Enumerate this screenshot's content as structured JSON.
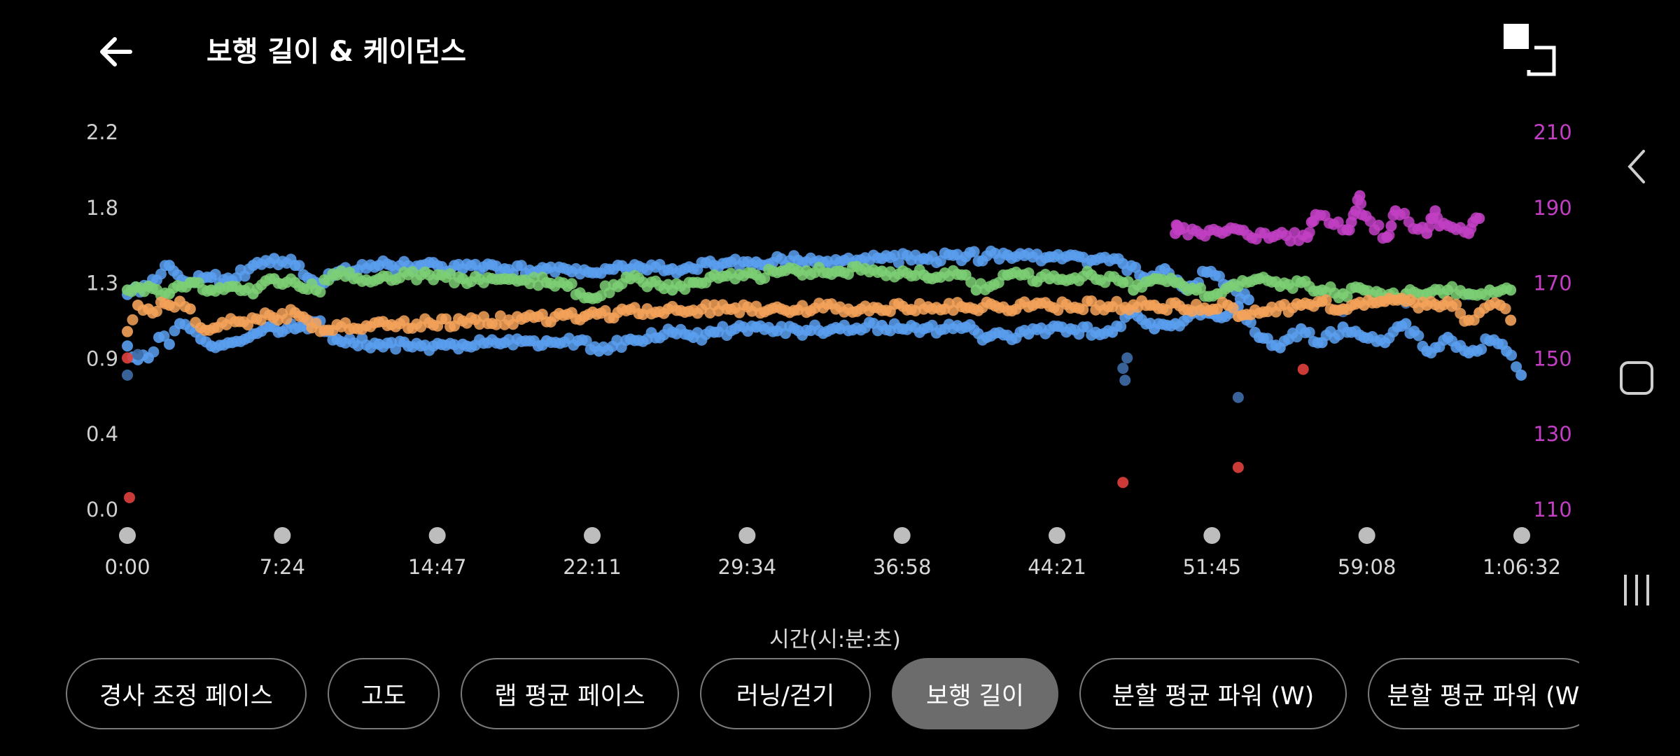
{
  "header": {
    "title": "보행 길이 & 케이던스",
    "back_icon": "arrow-left-icon",
    "fullscreen_icon": "fullscreen-icon"
  },
  "colors": {
    "left_axis_labels": "#cfcfcf",
    "right_axis_labels": "#c23fc4",
    "stride_series": "#5a9ff0",
    "stride_dark": "#3f6ea8",
    "cadence_green": "#7ccf74",
    "cadence_orange": "#f4a259",
    "cadence_red": "#e0403c",
    "cadence_magenta": "#c23fc4",
    "active_tab": "#6c6c6c",
    "tab_border": "#7a7a7a"
  },
  "chart_data": {
    "type": "scatter",
    "left_ticks": [
      "2.2",
      "1.8",
      "1.3",
      "0.9",
      "0.4",
      "0.0"
    ],
    "right_ticks": [
      "210",
      "190",
      "170",
      "150",
      "130",
      "110"
    ],
    "left_ylim": [
      0.0,
      2.2
    ],
    "right_ylim": [
      110,
      210
    ],
    "x_ticks": [
      "0:00",
      "7:24",
      "14:47",
      "22:11",
      "29:34",
      "36:58",
      "44:21",
      "51:45",
      "59:08",
      "1:06:32"
    ],
    "xlabel": "시간(시:분:초)",
    "x_range_min": [
      0,
      66.53
    ],
    "grid": false,
    "series": [
      {
        "axis": "left",
        "color_key": "stride_series",
        "points": [
          [
            0,
            0.95
          ],
          [
            0.5,
            0.87
          ],
          [
            1,
            0.88
          ],
          [
            1.5,
            1.0
          ],
          [
            2,
            0.96
          ],
          [
            2.5,
            1.08
          ],
          [
            3,
            1.05
          ],
          [
            3.5,
            0.99
          ],
          [
            4,
            0.95
          ],
          [
            5,
            0.97
          ],
          [
            6,
            1.02
          ],
          [
            7,
            1.06
          ],
          [
            8,
            1.05
          ],
          [
            9,
            1.09
          ],
          [
            10,
            0.99
          ],
          [
            12,
            0.96
          ],
          [
            14,
            0.95
          ],
          [
            16,
            0.96
          ],
          [
            18,
            0.97
          ],
          [
            20,
            0.98
          ],
          [
            21.5,
            0.98
          ],
          [
            22.5,
            0.92
          ],
          [
            24,
            0.99
          ],
          [
            26,
            1.03
          ],
          [
            27,
            1.0
          ],
          [
            28,
            1.03
          ],
          [
            30,
            1.06
          ],
          [
            32,
            1.04
          ],
          [
            34,
            1.05
          ],
          [
            36,
            1.07
          ],
          [
            38,
            1.05
          ],
          [
            40,
            1.06
          ],
          [
            41,
            1.0
          ],
          [
            43,
            1.02
          ],
          [
            45,
            1.05
          ],
          [
            47,
            1.03
          ],
          [
            48,
            1.15
          ],
          [
            49,
            1.05
          ],
          [
            50,
            1.08
          ],
          [
            51,
            1.15
          ],
          [
            52,
            1.12
          ],
          [
            53,
            1.18
          ],
          [
            54,
            1.0
          ],
          [
            55,
            0.94
          ],
          [
            56,
            1.05
          ],
          [
            57,
            0.97
          ],
          [
            58,
            1.06
          ],
          [
            59,
            1.0
          ],
          [
            60,
            0.97
          ],
          [
            61,
            1.08
          ],
          [
            62,
            0.92
          ],
          [
            63,
            1.0
          ],
          [
            64,
            0.91
          ],
          [
            65,
            0.98
          ],
          [
            65.8,
            0.92
          ],
          [
            66.5,
            0.78
          ]
        ]
      },
      {
        "axis": "left",
        "color_key": "stride_series",
        "points": [
          [
            0,
            1.25
          ],
          [
            1,
            1.3
          ],
          [
            2,
            1.42
          ],
          [
            3,
            1.32
          ],
          [
            4,
            1.35
          ],
          [
            5,
            1.33
          ],
          [
            6,
            1.42
          ],
          [
            7,
            1.46
          ],
          [
            8,
            1.42
          ],
          [
            9,
            1.32
          ],
          [
            10,
            1.38
          ],
          [
            12,
            1.42
          ],
          [
            14,
            1.42
          ],
          [
            16,
            1.4
          ],
          [
            18,
            1.4
          ],
          [
            20,
            1.4
          ],
          [
            22,
            1.38
          ],
          [
            24,
            1.4
          ],
          [
            26,
            1.4
          ],
          [
            28,
            1.42
          ],
          [
            30,
            1.44
          ],
          [
            32,
            1.45
          ],
          [
            34,
            1.44
          ],
          [
            36,
            1.46
          ],
          [
            38,
            1.46
          ],
          [
            40,
            1.47
          ],
          [
            42,
            1.48
          ],
          [
            44,
            1.47
          ],
          [
            46,
            1.45
          ],
          [
            47.5,
            1.43
          ],
          [
            48.5,
            1.35
          ],
          [
            49.5,
            1.4
          ],
          [
            50.5,
            1.28
          ],
          [
            51.5,
            1.38
          ],
          [
            52.5,
            1.3
          ],
          [
            53.5,
            1.22
          ]
        ]
      },
      {
        "axis": "left",
        "color_key": "stride_dark",
        "points": [
          [
            0,
            0.78
          ],
          [
            0.5,
            0.9
          ],
          [
            47.5,
            0.82
          ],
          [
            47.6,
            0.75
          ],
          [
            47.7,
            0.88
          ],
          [
            53,
            0.65
          ],
          [
            58,
            1.15
          ],
          [
            61,
            1.2
          ],
          [
            64,
            1.25
          ]
        ]
      },
      {
        "axis": "right",
        "color_key": "cadence_green",
        "points": [
          [
            0,
            168
          ],
          [
            1,
            169
          ],
          [
            2,
            167
          ],
          [
            3,
            170
          ],
          [
            4,
            168
          ],
          [
            5,
            169
          ],
          [
            6,
            167
          ],
          [
            7,
            171
          ],
          [
            8,
            170
          ],
          [
            9,
            168
          ],
          [
            10,
            172
          ],
          [
            12,
            171
          ],
          [
            14,
            172
          ],
          [
            16,
            171
          ],
          [
            18,
            171
          ],
          [
            20,
            170
          ],
          [
            21,
            169
          ],
          [
            22,
            166
          ],
          [
            24,
            171
          ],
          [
            26,
            168
          ],
          [
            27,
            170
          ],
          [
            28,
            172
          ],
          [
            30,
            172
          ],
          [
            32,
            173
          ],
          [
            34,
            173
          ],
          [
            36,
            173
          ],
          [
            38,
            172
          ],
          [
            40,
            172
          ],
          [
            40.5,
            168
          ],
          [
            42,
            172
          ],
          [
            44,
            171
          ],
          [
            46,
            172
          ],
          [
            47.5,
            170
          ],
          [
            48,
            168
          ],
          [
            49,
            171
          ],
          [
            50,
            170
          ],
          [
            51,
            168
          ],
          [
            52,
            167
          ],
          [
            53,
            169
          ],
          [
            54,
            171
          ],
          [
            55,
            169
          ],
          [
            56,
            170
          ],
          [
            57,
            168
          ],
          [
            58,
            167
          ],
          [
            59,
            168
          ],
          [
            60,
            166
          ],
          [
            61,
            167
          ],
          [
            62,
            167
          ],
          [
            63,
            168
          ],
          [
            64,
            167
          ],
          [
            65,
            168
          ],
          [
            66,
            168
          ]
        ]
      },
      {
        "axis": "right",
        "color_key": "cadence_orange",
        "points": [
          [
            0,
            157
          ],
          [
            0.5,
            164
          ],
          [
            1,
            163
          ],
          [
            2,
            164
          ],
          [
            2.5,
            165
          ],
          [
            3,
            163
          ],
          [
            3.5,
            158
          ],
          [
            8,
            162
          ],
          [
            8.8,
            158
          ],
          [
            21.8,
            161
          ],
          [
            25.8,
            163
          ],
          [
            49,
            164
          ],
          [
            52,
            163
          ],
          [
            52.5,
            164
          ],
          [
            53,
            161
          ],
          [
            56,
            164
          ],
          [
            57,
            165
          ],
          [
            58,
            163
          ],
          [
            59,
            164
          ],
          [
            60,
            165
          ],
          [
            61,
            165
          ],
          [
            62,
            164
          ],
          [
            63,
            165
          ],
          [
            64,
            160
          ],
          [
            64.5,
            162
          ],
          [
            65,
            164
          ],
          [
            65.5,
            164
          ],
          [
            66,
            160
          ]
        ]
      },
      {
        "axis": "right",
        "color_key": "cadence_red",
        "points": [
          [
            0,
            150
          ],
          [
            0.1,
            113
          ],
          [
            47.5,
            117
          ],
          [
            53,
            121
          ],
          [
            56.1,
            147
          ]
        ]
      },
      {
        "axis": "right",
        "color_key": "cadence_magenta",
        "points": [
          [
            50,
            183
          ],
          [
            50.1,
            185
          ],
          [
            50.2,
            184
          ],
          [
            56.3,
            182
          ],
          [
            56.5,
            186
          ],
          [
            56.7,
            188
          ],
          [
            58.2,
            184
          ],
          [
            58.4,
            186
          ],
          [
            58.6,
            189
          ],
          [
            58.8,
            193
          ],
          [
            58.9,
            188
          ],
          [
            60.1,
            182
          ],
          [
            60.3,
            185
          ],
          [
            60.5,
            189
          ],
          [
            62,
            183
          ],
          [
            62.2,
            187
          ],
          [
            62.4,
            189
          ],
          [
            62.6,
            185
          ],
          [
            64,
            183
          ],
          [
            64.2,
            186
          ],
          [
            64.5,
            187
          ]
        ]
      }
    ]
  },
  "tabs": [
    {
      "label": "경사 조정 페이스",
      "active": false
    },
    {
      "label": "고도",
      "active": false
    },
    {
      "label": "랩 평균 페이스",
      "active": false
    },
    {
      "label": "러닝/걷기",
      "active": false
    },
    {
      "label": "보행 길이",
      "active": true
    },
    {
      "label": "분할 평균 파워 (W)",
      "active": false
    },
    {
      "label": "분할 평균 파워 (W",
      "active": false
    }
  ],
  "system_nav": {
    "back_icon": "chevron-left-icon",
    "home_icon": "home-square-icon",
    "recents_icon": "recents-lines-icon"
  }
}
